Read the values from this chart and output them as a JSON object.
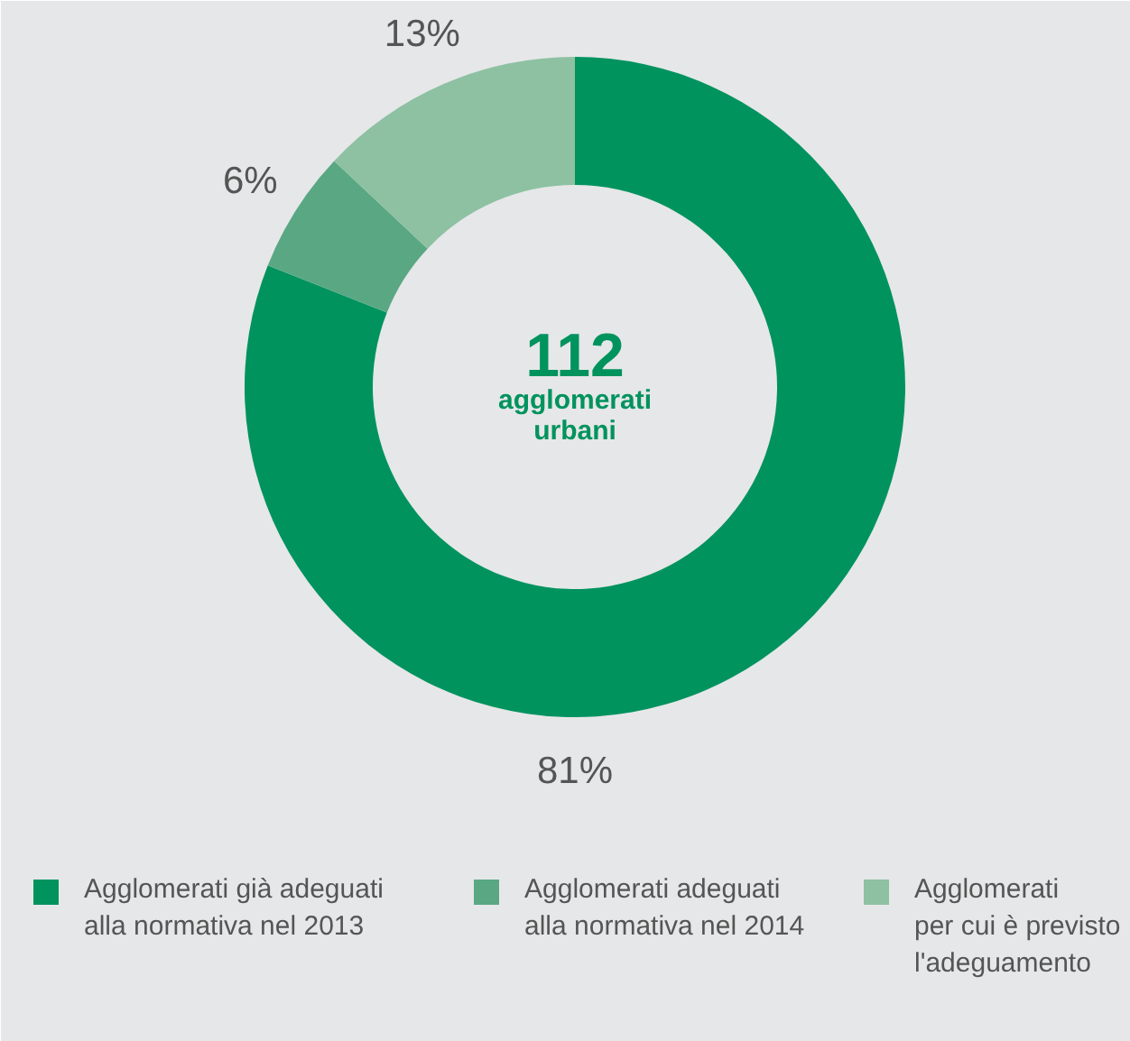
{
  "chart_data": {
    "type": "donut",
    "categories": [
      "Agglomerati già adeguati\nalla normativa nel 2013",
      "Agglomerati adeguati\nalla normativa nel 2014",
      "Agglomerati\nper cui è previsto\nl'adeguamento"
    ],
    "values": [
      81,
      6,
      13
    ],
    "colors": [
      "#00935e",
      "#59a883",
      "#8dc1a2"
    ],
    "annotations": [
      "112",
      "agglomerati\nurbani"
    ],
    "value_labels": [
      "81%",
      "6%",
      "13%"
    ],
    "legend": "bottom"
  }
}
